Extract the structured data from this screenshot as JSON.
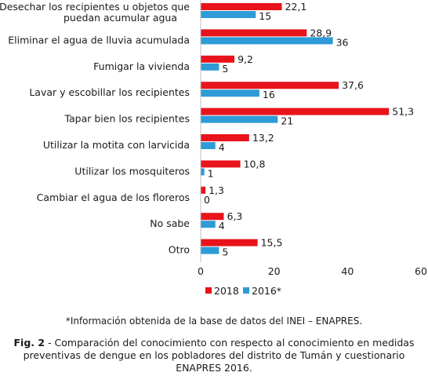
{
  "chart_data": {
    "type": "bar",
    "orientation": "horizontal",
    "categories": [
      "Desechar los recipientes u objetos que puedan acumular agua",
      "Eliminar el agua de lluvia acumulada",
      "Fumigar la vivienda",
      "Lavar y escobillar los recipientes",
      "Tapar bien los recipientes",
      "Utilizar la motita con larvicida",
      "Utilizar los mosquiteros",
      "Cambiar el agua de los floreros",
      "No sabe",
      "Otro"
    ],
    "series": [
      {
        "name": "2018",
        "color": "#e8131b",
        "values": [
          22.1,
          28.9,
          9.2,
          37.6,
          51.3,
          13.2,
          10.8,
          1.3,
          6.3,
          15.5
        ],
        "labels": [
          "22,1",
          "28,9",
          "9,2",
          "37,6",
          "51,3",
          "13,2",
          "10,8",
          "1,3",
          "6,3",
          "15,5"
        ]
      },
      {
        "name": "2016*",
        "color": "#2e9bd6",
        "values": [
          15,
          36,
          5,
          16,
          21,
          4,
          1,
          0,
          4,
          5
        ],
        "labels": [
          "15",
          "36",
          "5",
          "16",
          "21",
          "4",
          "1",
          "0",
          "4",
          "5"
        ]
      }
    ],
    "xlim": [
      0,
      60
    ],
    "xticks": [
      "0",
      "20",
      "40",
      "60"
    ],
    "grid": false,
    "legend": "bottom"
  },
  "note": "*Información obtenida de la base de datos del INEI – ENAPRES.",
  "caption": {
    "fig_label": "Fig. 2",
    "text": " - Comparación del conocimiento con respecto al conocimiento en medidas preventivas de dengue en los pobladores del distrito de Tumán y cuestionario ENAPRES 2016."
  }
}
